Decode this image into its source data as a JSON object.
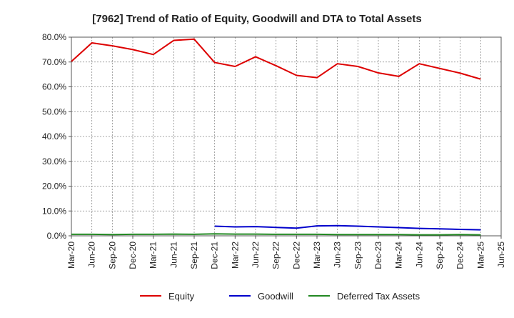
{
  "chart_data": {
    "type": "line",
    "title": "[7962]  Trend of Ratio of Equity, Goodwill and DTA to Total Assets",
    "xlabel": "",
    "ylabel": "",
    "ylim": [
      0,
      80
    ],
    "yticks": [
      0,
      10,
      20,
      30,
      40,
      50,
      60,
      70,
      80
    ],
    "ytick_labels": [
      "0.0%",
      "10.0%",
      "20.0%",
      "30.0%",
      "40.0%",
      "50.0%",
      "60.0%",
      "70.0%",
      "80.0%"
    ],
    "categories": [
      "Mar-20",
      "Jun-20",
      "Sep-20",
      "Dec-20",
      "Mar-21",
      "Jun-21",
      "Sep-21",
      "Dec-21",
      "Mar-22",
      "Jun-22",
      "Sep-22",
      "Dec-22",
      "Mar-23",
      "Jun-23",
      "Sep-23",
      "Dec-23",
      "Mar-24",
      "Jun-24",
      "Sep-24",
      "Dec-24",
      "Mar-25",
      "Jun-25"
    ],
    "grid": true,
    "legend_position": "bottom",
    "series": [
      {
        "name": "Equity",
        "color": "#dd0000",
        "values": [
          70.2,
          77.7,
          76.5,
          75.0,
          73.0,
          78.7,
          79.2,
          69.8,
          68.2,
          72.1,
          68.5,
          64.6,
          63.7,
          69.3,
          68.2,
          65.6,
          64.2,
          69.3,
          67.4,
          65.5,
          63.1,
          null
        ]
      },
      {
        "name": "Goodwill",
        "color": "#0000cc",
        "values": [
          null,
          null,
          null,
          null,
          null,
          null,
          null,
          3.9,
          3.6,
          3.7,
          3.4,
          3.1,
          4.0,
          4.1,
          3.9,
          3.6,
          3.3,
          3.0,
          2.8,
          2.6,
          2.4,
          null
        ]
      },
      {
        "name": "Deferred Tax Assets",
        "color": "#228822",
        "values": [
          0.6,
          0.6,
          0.5,
          0.6,
          0.6,
          0.7,
          0.6,
          0.8,
          0.7,
          0.7,
          0.6,
          0.6,
          0.6,
          0.5,
          0.5,
          0.5,
          0.5,
          0.4,
          0.4,
          0.5,
          0.4,
          null
        ]
      }
    ]
  }
}
